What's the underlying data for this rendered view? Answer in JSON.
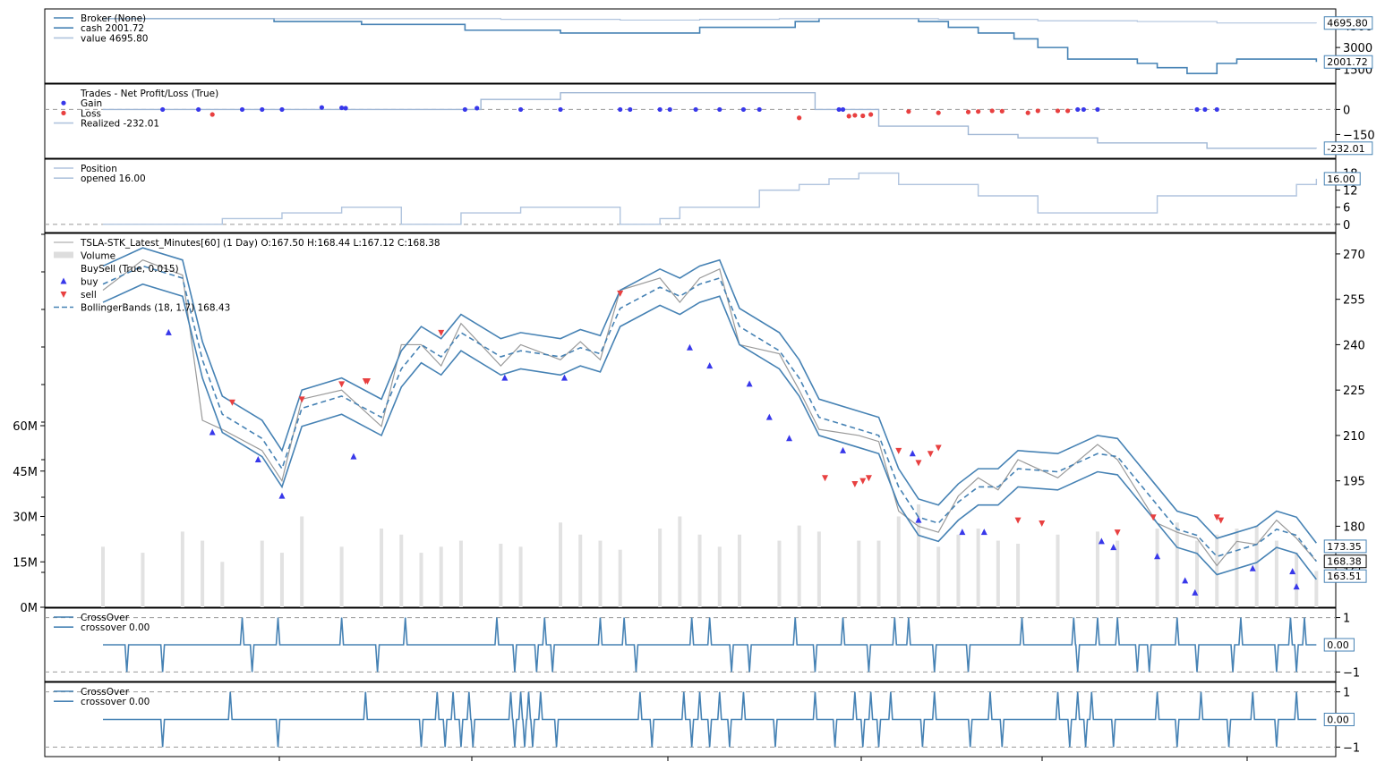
{
  "chart_data": [
    {
      "type": "line",
      "panel": "broker",
      "legend": [
        {
          "label": "Broker (None)",
          "color": "#4682b4"
        },
        {
          "label": "cash 2001.72",
          "color": "#4682b4"
        },
        {
          "label": "value 4695.80",
          "color": "#b0c4de"
        }
      ],
      "yticks": [
        "4500",
        "3000",
        "1500"
      ],
      "ylim": [
        900,
        5300
      ],
      "end_labels": [
        "4695.80",
        "2001.72"
      ],
      "series": [
        {
          "name": "cash",
          "color": "#4682b4",
          "x": [
            0,
            30,
            75,
            86,
            120,
            130,
            170,
            182,
            205,
            230,
            232,
            300,
            348,
            360,
            382,
            400,
            410,
            425,
            440,
            458,
            470,
            485,
            503,
            520,
            530,
            545,
            560,
            570,
            610
          ],
          "y": [
            5000,
            5000,
            5000,
            4800,
            4800,
            4600,
            4600,
            4200,
            4200,
            4000,
            4000,
            4400,
            4800,
            5000,
            5000,
            5000,
            4800,
            4400,
            4000,
            3600,
            3000,
            2200,
            2200,
            1900,
            1600,
            1200,
            1900,
            2200,
            2000
          ]
        },
        {
          "name": "value",
          "color": "#b0c4de",
          "x": [
            0,
            60,
            120,
            200,
            260,
            300,
            340,
            380,
            420,
            470,
            520,
            560,
            610
          ],
          "y": [
            5000,
            5000,
            5000,
            4950,
            4900,
            4950,
            5000,
            5000,
            4950,
            4850,
            4800,
            4700,
            4695.8
          ]
        }
      ]
    },
    {
      "type": "scatter",
      "panel": "trades",
      "legend": [
        {
          "label": "Trades - Net Profit/Loss (True)",
          "color": "#ffffff"
        },
        {
          "label": "Gain",
          "color": "#3838ea"
        },
        {
          "label": "Loss",
          "color": "#e84040"
        },
        {
          "label": "Realized -232.01",
          "color": "#b0c4de"
        }
      ],
      "yticks": [
        "0",
        "−150"
      ],
      "ylim": [
        -260,
        120
      ],
      "end_labels": [
        "-232.01"
      ],
      "gain": {
        "x": [
          30,
          48,
          70,
          80,
          90,
          110,
          120,
          122,
          182,
          188,
          210,
          230,
          260,
          265,
          280,
          285,
          298,
          310,
          322,
          330,
          370,
          372,
          490,
          493,
          500,
          550,
          554,
          560
        ],
        "y": [
          0,
          0,
          0,
          0,
          0,
          12,
          10,
          8,
          0,
          8,
          0,
          0,
          0,
          0,
          0,
          0,
          0,
          0,
          0,
          0,
          0,
          0,
          0,
          0,
          0,
          0,
          0,
          0
        ]
      },
      "loss": {
        "x": [
          55,
          350,
          375,
          378,
          382,
          386,
          405,
          420,
          435,
          440,
          447,
          452,
          465,
          470,
          480,
          485
        ],
        "y": [
          -30,
          -50,
          -40,
          -35,
          -38,
          -30,
          -12,
          -20,
          -15,
          -12,
          -8,
          -10,
          -20,
          -8,
          -8,
          -8
        ]
      },
      "realized": {
        "x": [
          0,
          30,
          60,
          90,
          130,
          190,
          230,
          340,
          358,
          390,
          435,
          460,
          500,
          555,
          610
        ],
        "y": [
          0,
          0,
          0,
          0,
          0,
          60,
          100,
          100,
          0,
          -100,
          -150,
          -170,
          -200,
          -232,
          -232.01
        ]
      }
    },
    {
      "type": "line",
      "panel": "position",
      "legend": [
        {
          "label": "Position",
          "color": "#b0c4de"
        },
        {
          "label": "opened 16.00",
          "color": "#b0c4de"
        }
      ],
      "yticks": [
        "18",
        "12",
        "6",
        "0"
      ],
      "ylim": [
        -1,
        21
      ],
      "end_labels": [
        "16.00"
      ],
      "series": [
        {
          "name": "position",
          "color": "#b0c4de",
          "x": [
            0,
            30,
            60,
            90,
            120,
            150,
            180,
            210,
            230,
            260,
            280,
            290,
            330,
            350,
            365,
            380,
            400,
            440,
            470,
            530,
            580,
            600,
            610
          ],
          "y": [
            0,
            0,
            2,
            4,
            6,
            0,
            4,
            6,
            6,
            0,
            2,
            6,
            12,
            14,
            16,
            18,
            14,
            10,
            4,
            10,
            10,
            14,
            16
          ]
        }
      ]
    },
    {
      "type": "line",
      "panel": "price",
      "legend": [
        {
          "label": "TSLA-STK_Latest_Minutes[60] (1 Day) O:167.50 H:168.44 L:167.12 C:168.38",
          "color": "#bdbdbd"
        },
        {
          "label": "Volume",
          "color": "#dddddd"
        },
        {
          "label": "BuySell (True, 0.015)",
          "color": "#ffffff"
        },
        {
          "label": "buy",
          "color": "#3838ea"
        },
        {
          "label": "sell",
          "color": "#e84040"
        },
        {
          "label": "BollingerBands (18, 1.7) 168.43",
          "color": "#4682b4"
        }
      ],
      "yticks": [
        "270",
        "255",
        "240",
        "225",
        "210",
        "195",
        "180",
        "165"
      ],
      "volume_ticks": [
        "60M",
        "45M",
        "30M",
        "15M",
        "0M"
      ],
      "ylim": [
        155,
        275
      ],
      "volume_lim": [
        0,
        120
      ],
      "end_labels": [
        "173.35",
        "168.38",
        "163.51"
      ],
      "x": [
        0,
        20,
        40,
        50,
        60,
        80,
        90,
        100,
        120,
        140,
        150,
        160,
        170,
        180,
        200,
        210,
        230,
        240,
        250,
        260,
        280,
        290,
        300,
        310,
        320,
        340,
        350,
        360,
        380,
        390,
        400,
        410,
        420,
        430,
        440,
        450,
        460,
        480,
        500,
        510,
        530,
        540,
        550,
        560,
        570,
        580,
        590,
        600,
        610
      ],
      "close": [
        258,
        268,
        263,
        215,
        212,
        205,
        195,
        222,
        225,
        213,
        240,
        240,
        233,
        247,
        233,
        240,
        235,
        241,
        235,
        258,
        262,
        254,
        262,
        265,
        240,
        237,
        225,
        212,
        210,
        208,
        185,
        180,
        178,
        190,
        196,
        192,
        202,
        196,
        207,
        202,
        181,
        178,
        176,
        167,
        175,
        174,
        182,
        176,
        168.38
      ],
      "bb_mid": [
        260,
        266,
        262,
        235,
        217,
        209,
        199,
        219,
        223,
        216,
        232,
        240,
        236,
        244,
        236,
        238,
        236,
        239,
        237,
        252,
        259,
        256,
        260,
        262,
        246,
        238,
        229,
        216,
        212,
        210,
        193,
        183,
        181,
        188,
        193,
        193,
        199,
        198,
        204,
        203,
        187,
        179,
        177,
        170,
        172,
        174,
        179,
        177,
        168.43
      ],
      "buys": {
        "x": [
          33,
          55,
          78,
          90,
          126,
          202,
          232,
          295,
          305,
          325,
          335,
          345,
          372,
          407,
          410,
          432,
          443,
          502,
          508,
          530,
          544,
          549,
          578,
          598,
          600
        ],
        "y": [
          244,
          211,
          202,
          190,
          203,
          229,
          229,
          239,
          233,
          227,
          216,
          209,
          205,
          204,
          182,
          178,
          178,
          175,
          173,
          170,
          162,
          158,
          166,
          165,
          160
        ]
      },
      "sells": {
        "x": [
          65,
          100,
          120,
          132,
          133,
          170,
          260,
          363,
          378,
          382,
          385,
          400,
          410,
          416,
          420,
          460,
          472,
          510,
          528,
          560,
          562
        ],
        "y": [
          221,
          222,
          227,
          228,
          228,
          244,
          257,
          196,
          194,
          195,
          196,
          205,
          201,
          204,
          206,
          182,
          181,
          178,
          183,
          183,
          182
        ]
      },
      "volume": [
        20,
        18,
        25,
        22,
        15,
        22,
        18,
        30,
        20,
        26,
        24,
        18,
        20,
        22,
        21,
        20,
        28,
        24,
        22,
        19,
        26,
        30,
        24,
        20,
        24,
        22,
        27,
        25,
        22,
        22,
        30,
        34,
        20,
        24,
        26,
        22,
        21,
        24,
        25,
        22,
        26,
        28,
        22,
        24,
        26,
        27,
        22,
        18,
        12
      ]
    },
    {
      "type": "line",
      "panel": "crossover1",
      "legend": [
        {
          "label": "CrossOver",
          "color": "#4682b4"
        },
        {
          "label": "crossover 0.00",
          "color": "#4682b4"
        }
      ],
      "yticks": [
        "1",
        "−1"
      ],
      "ylim": [
        -1.15,
        1.15
      ],
      "end_labels": [
        "0.00"
      ],
      "spikes": [
        {
          "x": 12,
          "v": -1
        },
        {
          "x": 30,
          "v": -1
        },
        {
          "x": 70,
          "v": 1
        },
        {
          "x": 75,
          "v": -1
        },
        {
          "x": 88,
          "v": 1
        },
        {
          "x": 120,
          "v": 1
        },
        {
          "x": 138,
          "v": -1
        },
        {
          "x": 152,
          "v": 1
        },
        {
          "x": 198,
          "v": 1
        },
        {
          "x": 207,
          "v": -1
        },
        {
          "x": 218,
          "v": -1
        },
        {
          "x": 222,
          "v": 1
        },
        {
          "x": 226,
          "v": -1
        },
        {
          "x": 250,
          "v": 1
        },
        {
          "x": 262,
          "v": 1
        },
        {
          "x": 268,
          "v": -1
        },
        {
          "x": 296,
          "v": 1
        },
        {
          "x": 305,
          "v": 1
        },
        {
          "x": 316,
          "v": -1
        },
        {
          "x": 325,
          "v": -1
        },
        {
          "x": 348,
          "v": 1
        },
        {
          "x": 358,
          "v": -1
        },
        {
          "x": 372,
          "v": 1
        },
        {
          "x": 385,
          "v": -1
        },
        {
          "x": 398,
          "v": 1
        },
        {
          "x": 405,
          "v": 1
        },
        {
          "x": 418,
          "v": -1
        },
        {
          "x": 435,
          "v": -1
        },
        {
          "x": 462,
          "v": 1
        },
        {
          "x": 488,
          "v": 1
        },
        {
          "x": 490,
          "v": -1
        },
        {
          "x": 500,
          "v": 1
        },
        {
          "x": 510,
          "v": 1
        },
        {
          "x": 520,
          "v": -1
        },
        {
          "x": 526,
          "v": -1
        },
        {
          "x": 540,
          "v": 1
        },
        {
          "x": 550,
          "v": -1
        },
        {
          "x": 568,
          "v": -1
        },
        {
          "x": 572,
          "v": 1
        },
        {
          "x": 590,
          "v": -1
        },
        {
          "x": 597,
          "v": 1
        },
        {
          "x": 600,
          "v": -1
        },
        {
          "x": 604,
          "v": 1
        }
      ]
    },
    {
      "type": "line",
      "panel": "crossover2",
      "legend": [
        {
          "label": "CrossOver",
          "color": "#4682b4"
        },
        {
          "label": "crossover 0.00",
          "color": "#4682b4"
        }
      ],
      "yticks": [
        "1",
        "−1"
      ],
      "ylim": [
        -1.15,
        1.15
      ],
      "end_labels": [
        "0.00"
      ],
      "spikes": [
        {
          "x": 30,
          "v": -1
        },
        {
          "x": 64,
          "v": 1
        },
        {
          "x": 88,
          "v": -1
        },
        {
          "x": 132,
          "v": 1
        },
        {
          "x": 160,
          "v": -1
        },
        {
          "x": 168,
          "v": 1
        },
        {
          "x": 172,
          "v": -1
        },
        {
          "x": 176,
          "v": 1
        },
        {
          "x": 180,
          "v": -1
        },
        {
          "x": 184,
          "v": 1
        },
        {
          "x": 186,
          "v": -1
        },
        {
          "x": 205,
          "v": 1
        },
        {
          "x": 207,
          "v": -1
        },
        {
          "x": 210,
          "v": 1
        },
        {
          "x": 212,
          "v": -1
        },
        {
          "x": 214,
          "v": 1
        },
        {
          "x": 216,
          "v": -1
        },
        {
          "x": 220,
          "v": 1
        },
        {
          "x": 228,
          "v": -1
        },
        {
          "x": 270,
          "v": 1
        },
        {
          "x": 276,
          "v": -1
        },
        {
          "x": 292,
          "v": 1
        },
        {
          "x": 296,
          "v": -1
        },
        {
          "x": 300,
          "v": 1
        },
        {
          "x": 305,
          "v": -1
        },
        {
          "x": 310,
          "v": 1
        },
        {
          "x": 315,
          "v": -1
        },
        {
          "x": 322,
          "v": 1
        },
        {
          "x": 338,
          "v": -1
        },
        {
          "x": 358,
          "v": 1
        },
        {
          "x": 368,
          "v": -1
        },
        {
          "x": 378,
          "v": 1
        },
        {
          "x": 382,
          "v": -1
        },
        {
          "x": 386,
          "v": 1
        },
        {
          "x": 390,
          "v": -1
        },
        {
          "x": 396,
          "v": 1
        },
        {
          "x": 412,
          "v": -1
        },
        {
          "x": 418,
          "v": 1
        },
        {
          "x": 436,
          "v": -1
        },
        {
          "x": 446,
          "v": 1
        },
        {
          "x": 452,
          "v": -1
        },
        {
          "x": 480,
          "v": 1
        },
        {
          "x": 486,
          "v": -1
        },
        {
          "x": 490,
          "v": 1
        },
        {
          "x": 494,
          "v": -1
        },
        {
          "x": 497,
          "v": 1
        },
        {
          "x": 508,
          "v": -1
        },
        {
          "x": 530,
          "v": 1
        },
        {
          "x": 540,
          "v": -1
        },
        {
          "x": 552,
          "v": 1
        },
        {
          "x": 566,
          "v": -1
        },
        {
          "x": 578,
          "v": 1
        },
        {
          "x": 590,
          "v": -1
        },
        {
          "x": 600,
          "v": 1
        }
      ]
    }
  ]
}
